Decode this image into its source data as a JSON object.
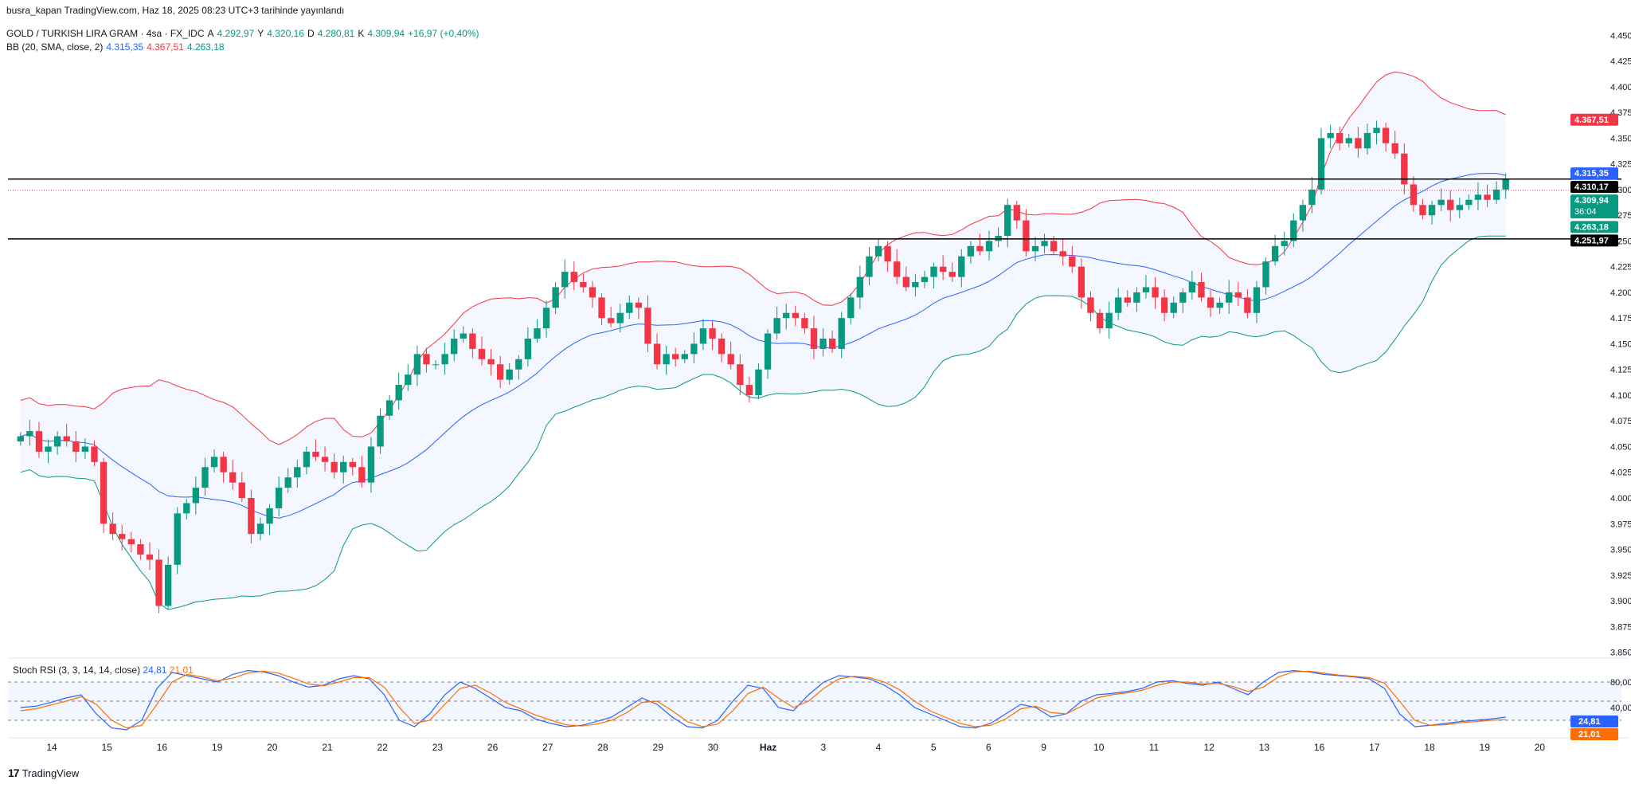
{
  "header": {
    "publish_line": "busra_kapan TradingView.com, Haz 18, 2025 08:23 UTC+3 tarihinde yayınlandı"
  },
  "legend": {
    "symbol": "GOLD / TURKISH LIRA GRAM · 4sa · FX_IDC",
    "open_key": "A",
    "open": "4.292,97",
    "high_key": "Y",
    "high": "4.320,16",
    "low_key": "D",
    "low": "4.280,81",
    "close_key": "K",
    "close": "4.309,94",
    "change": "+16,97 (+0,40%)",
    "bb_label": "BB (20, SMA, close, 2)",
    "bb_basis": "4.315,35",
    "bb_upper": "4.367,51",
    "bb_lower": "4.263,18"
  },
  "stoch_legend": {
    "label": "Stoch RSI (3, 3, 14, 14, close)",
    "k": "24,81",
    "d": "21,01"
  },
  "footer": {
    "brand": "TradingView",
    "logo": "tradingview-logo-icon"
  },
  "colors": {
    "up": "#089981",
    "down": "#f23645",
    "basis": "#2962ff",
    "upper": "#f23645",
    "lower": "#089981",
    "band_fill": "#2962ff",
    "k_line": "#2962ff",
    "d_line": "#ff6d00"
  },
  "chart_data": [
    {
      "type": "candlestick",
      "title": "GOLD / TURKISH LIRA GRAM · 4sa · FX_IDC",
      "y_axis_ticks": [
        "4.450,00",
        "4.425,00",
        "4.400,00",
        "4.375,00",
        "4.350,00",
        "4.325,00",
        "4.300,00",
        "4.275,00",
        "4.250,00",
        "4.225,00",
        "4.200,00",
        "4.175,00",
        "4.150,00",
        "4.125,00",
        "4.100,00",
        "4.075,00",
        "4.050,00",
        "4.025,00",
        "4.000,00",
        "3.975,00",
        "3.950,00",
        "3.925,00",
        "3.900,00",
        "3.875,00",
        "3.850,00"
      ],
      "ylim": [
        3845,
        4458
      ],
      "x_axis_labels": [
        "14",
        "15",
        "16",
        "19",
        "20",
        "21",
        "22",
        "23",
        "26",
        "27",
        "28",
        "29",
        "30",
        "Haz",
        "3",
        "4",
        "5",
        "6",
        "9",
        "10",
        "11",
        "12",
        "13",
        "16",
        "17",
        "18",
        "19",
        "20"
      ],
      "bars_per_day": 6,
      "horizontal_levels": [
        4310.17,
        4251.97
      ],
      "last_price_line": 4309.94,
      "price_labels": [
        {
          "text": "4.367,51",
          "value": 4367.51,
          "color": "#f23645"
        },
        {
          "text": "4.315,35",
          "value": 4315.35,
          "color": "#2962ff"
        },
        {
          "text": "4.310,17",
          "value": 4310.17,
          "color": "#000000"
        },
        {
          "text": "4.309,94",
          "sub": "36:04",
          "value": 4309.94,
          "color": "#089981"
        },
        {
          "text": "4.263,18",
          "value": 4263.18,
          "color": "#089981"
        },
        {
          "text": "4.251,97",
          "value": 4251.97,
          "color": "#000000"
        }
      ],
      "close_path": [
        4060,
        4065,
        4045,
        4050,
        4060,
        4055,
        4045,
        4050,
        4035,
        3975,
        3965,
        3960,
        3955,
        3945,
        3940,
        3895,
        3935,
        3985,
        3995,
        4010,
        4030,
        4040,
        4025,
        4015,
        4000,
        3965,
        3975,
        3990,
        4010,
        4020,
        4030,
        4045,
        4040,
        4035,
        4025,
        4035,
        4030,
        4015,
        4050,
        4080,
        4095,
        4110,
        4120,
        4140,
        4130,
        4130,
        4140,
        4155,
        4160,
        4145,
        4135,
        4130,
        4115,
        4125,
        4135,
        4155,
        4165,
        4185,
        4205,
        4220,
        4210,
        4205,
        4195,
        4175,
        4170,
        4180,
        4190,
        4185,
        4150,
        4130,
        4140,
        4135,
        4140,
        4150,
        4165,
        4155,
        4140,
        4130,
        4110,
        4100,
        4125,
        4160,
        4175,
        4180,
        4175,
        4165,
        4145,
        4155,
        4145,
        4175,
        4195,
        4215,
        4235,
        4245,
        4230,
        4215,
        4205,
        4210,
        4215,
        4225,
        4220,
        4215,
        4235,
        4245,
        4240,
        4250,
        4255,
        4285,
        4270,
        4240,
        4245,
        4250,
        4240,
        4235,
        4225,
        4195,
        4180,
        4165,
        4180,
        4195,
        4190,
        4200,
        4205,
        4195,
        4180,
        4190,
        4200,
        4210,
        4195,
        4185,
        4190,
        4200,
        4195,
        4180,
        4205,
        4230,
        4245,
        4250,
        4270,
        4285,
        4300,
        4350,
        4355,
        4345,
        4350,
        4340,
        4355,
        4360,
        4345,
        4335,
        4305,
        4285,
        4275,
        4285,
        4290,
        4280,
        4285,
        4290,
        4295,
        4290,
        4300,
        4309.94
      ],
      "stoch_rsi": {
        "k_label": "24,81",
        "d_label": "21,01",
        "levels": [
          80,
          40
        ],
        "k": [
          40,
          42,
          48,
          55,
          60,
          30,
          8,
          5,
          20,
          70,
          95,
          90,
          85,
          80,
          92,
          98,
          96,
          90,
          80,
          72,
          75,
          85,
          90,
          85,
          60,
          20,
          10,
          30,
          60,
          80,
          70,
          55,
          40,
          35,
          22,
          15,
          10,
          12,
          18,
          25,
          40,
          55,
          45,
          25,
          10,
          8,
          20,
          50,
          75,
          70,
          40,
          35,
          60,
          80,
          90,
          88,
          85,
          75,
          60,
          40,
          30,
          20,
          10,
          8,
          15,
          30,
          45,
          40,
          25,
          30,
          50,
          60,
          62,
          65,
          70,
          80,
          82,
          78,
          75,
          80,
          70,
          60,
          80,
          95,
          98,
          96,
          92,
          90,
          88,
          85,
          70,
          30,
          10,
          12,
          15,
          18,
          20,
          22,
          25
        ],
        "d": [
          35,
          38,
          44,
          50,
          57,
          45,
          20,
          8,
          12,
          45,
          80,
          92,
          88,
          82,
          86,
          94,
          97,
          94,
          86,
          77,
          74,
          80,
          87,
          87,
          72,
          40,
          15,
          20,
          45,
          70,
          75,
          63,
          48,
          38,
          28,
          20,
          13,
          11,
          14,
          20,
          32,
          48,
          50,
          35,
          18,
          10,
          14,
          35,
          62,
          72,
          55,
          40,
          50,
          70,
          85,
          89,
          87,
          80,
          68,
          50,
          35,
          25,
          15,
          10,
          12,
          22,
          38,
          42,
          32,
          30,
          42,
          55,
          60,
          63,
          67,
          75,
          80,
          80,
          77,
          78,
          73,
          65,
          72,
          88,
          96,
          97,
          94,
          91,
          89,
          87,
          78,
          50,
          20,
          12,
          13,
          16,
          18,
          20,
          21
        ]
      }
    }
  ]
}
